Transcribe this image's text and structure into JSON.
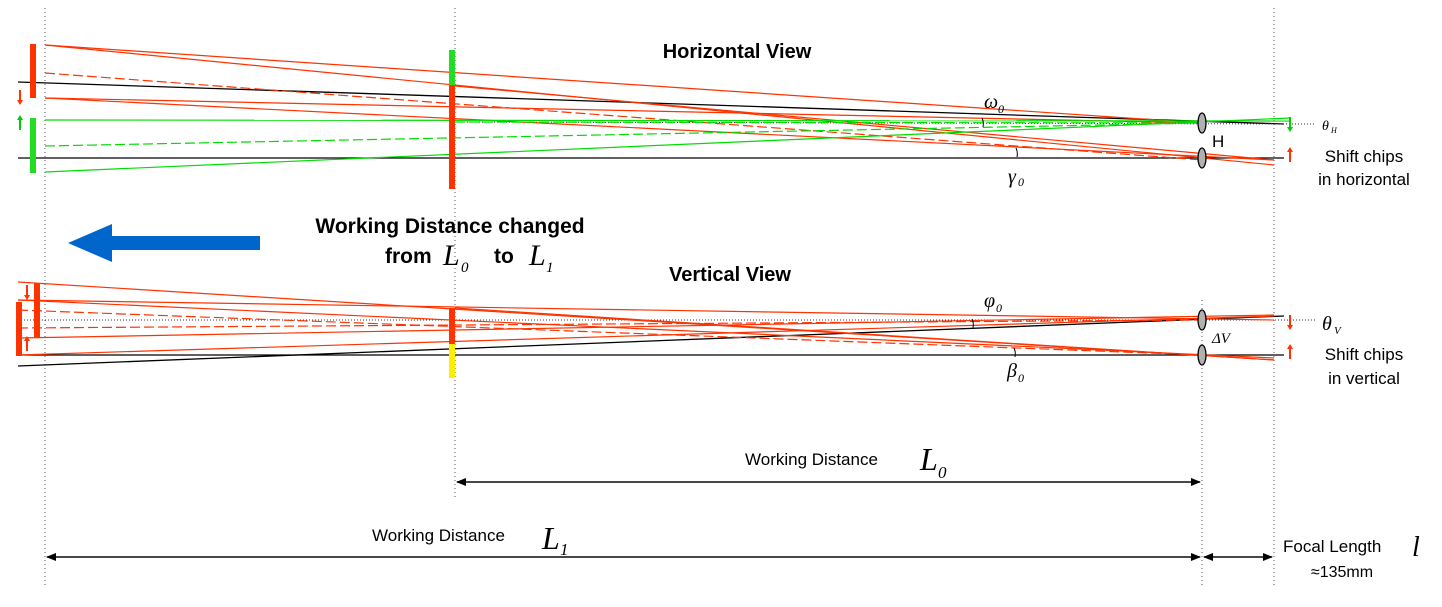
{
  "titles": {
    "horizontal_view": "Horizontal View",
    "vertical_view": "Vertical View"
  },
  "change_note": {
    "line1": "Working Distance changed",
    "from_word": "from",
    "to_word": "to",
    "l0": "L",
    "l0_sub": "0",
    "l1": "L",
    "l1_sub": "1"
  },
  "angles": {
    "omega": "ω",
    "omega_sub": "0",
    "gamma": "γ",
    "gamma_sub": "0",
    "phi": "φ",
    "phi_sub": "0",
    "beta": "β",
    "beta_sub": "0",
    "theta_h": "θ",
    "theta_h_sub": "H",
    "theta_v": "θ",
    "theta_v_sub": "V",
    "delta_v": "ΔV",
    "h_label": "H"
  },
  "shift": {
    "horizontal_line1": "Shift chips",
    "horizontal_line2": "in horizontal",
    "vertical_line1": "Shift chips",
    "vertical_line2": "in vertical"
  },
  "distances": {
    "wd_l0_text": "Working Distance",
    "wd_l0_symbol": "L",
    "wd_l0_sub": "0",
    "wd_l1_text": "Working Distance",
    "wd_l1_symbol": "L",
    "wd_l1_sub": "1",
    "focal_text": "Focal Length",
    "focal_symbol": "l",
    "focal_value": "≈135mm"
  },
  "colors": {
    "ray_red": "#ff3300",
    "ray_green": "#00dd00",
    "chip_red": "#ff3300",
    "chip_green": "#22dd22",
    "chip_yellow": "#ffee00",
    "arrow_blue": "#0066cc",
    "lens_gray": "#b0b0b0"
  }
}
